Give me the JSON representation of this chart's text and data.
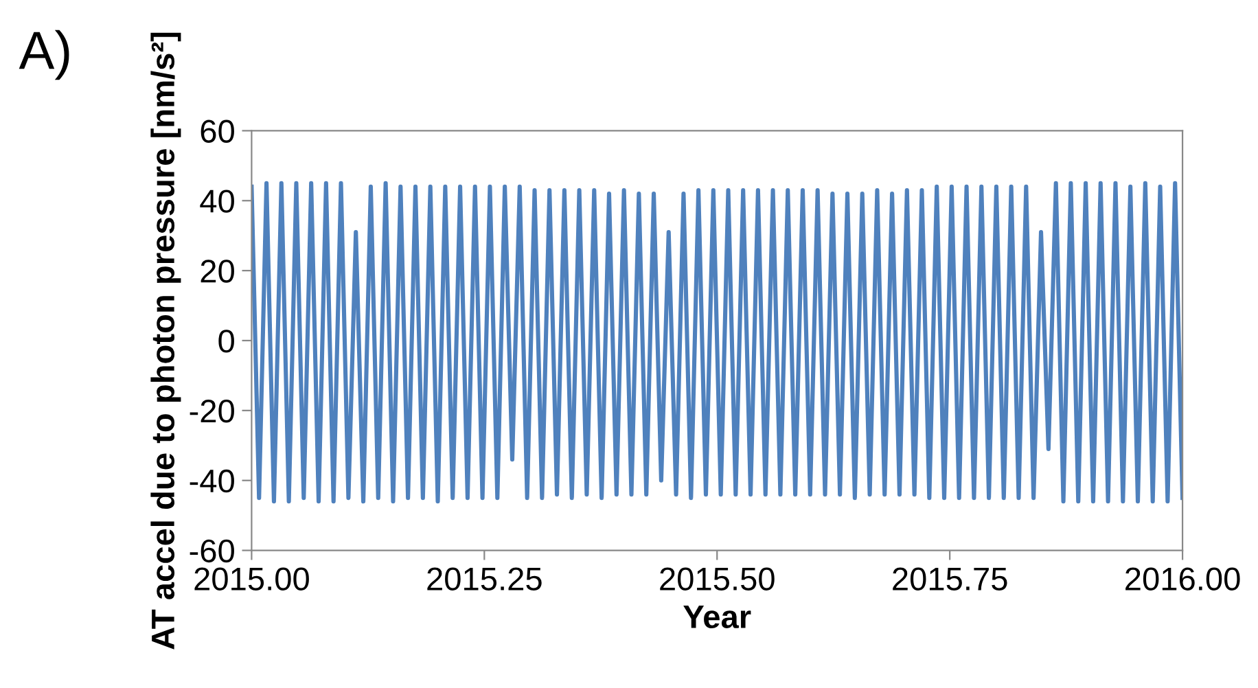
{
  "chart_data": {
    "type": "line",
    "title": "A)",
    "xlabel": "Year",
    "ylabel": "AT accel due to photon pressure [nm/s²]",
    "xlim": [
      2015,
      2016
    ],
    "ylim": [
      -60,
      60
    ],
    "xticks": [
      {
        "value": 2015,
        "label": "2015.00"
      },
      {
        "value": 2015.25,
        "label": "2015.25"
      },
      {
        "value": 2015.5,
        "label": "2015.50"
      },
      {
        "value": 2015.75,
        "label": "2015.75"
      },
      {
        "value": 2016,
        "label": "2016.00"
      }
    ],
    "yticks": [
      -60,
      -40,
      -20,
      0,
      20,
      40,
      60
    ],
    "grid": false,
    "legend": false,
    "marker": "none",
    "line_style": "solid",
    "series": [
      {
        "color": "#4f81bd",
        "x": [
          2015.0,
          2015.008,
          2015.016,
          2015.024,
          2015.032,
          2015.04,
          2015.048,
          2015.056,
          2015.064,
          2015.072,
          2015.08,
          2015.088,
          2015.096,
          2015.104,
          2015.112,
          2015.12,
          2015.128,
          2015.136,
          2015.144,
          2015.152,
          2015.16,
          2015.168,
          2015.176,
          2015.184,
          2015.192,
          2015.2,
          2015.208,
          2015.216,
          2015.224,
          2015.232,
          2015.24,
          2015.248,
          2015.256,
          2015.264,
          2015.272,
          2015.28,
          2015.288,
          2015.296,
          2015.304,
          2015.312,
          2015.32,
          2015.328,
          2015.336,
          2015.344,
          2015.352,
          2015.36,
          2015.368,
          2015.376,
          2015.384,
          2015.392,
          2015.4,
          2015.408,
          2015.416,
          2015.424,
          2015.432,
          2015.44,
          2015.448,
          2015.456,
          2015.464,
          2015.472,
          2015.48,
          2015.488,
          2015.496,
          2015.504,
          2015.512,
          2015.52,
          2015.528,
          2015.536,
          2015.544,
          2015.552,
          2015.56,
          2015.568,
          2015.576,
          2015.584,
          2015.592,
          2015.6,
          2015.608,
          2015.616,
          2015.624,
          2015.632,
          2015.64,
          2015.648,
          2015.656,
          2015.664,
          2015.672,
          2015.68,
          2015.688,
          2015.696,
          2015.704,
          2015.712,
          2015.72,
          2015.728,
          2015.736,
          2015.744,
          2015.752,
          2015.76,
          2015.768,
          2015.776,
          2015.784,
          2015.792,
          2015.8,
          2015.808,
          2015.816,
          2015.824,
          2015.832,
          2015.84,
          2015.848,
          2015.856,
          2015.864,
          2015.872,
          2015.88,
          2015.888,
          2015.896,
          2015.904,
          2015.912,
          2015.92,
          2015.928,
          2015.936,
          2015.944,
          2015.952,
          2015.96,
          2015.968,
          2015.976,
          2015.984,
          2015.992,
          2016.0
        ],
        "values": [
          44,
          -45,
          45,
          -46,
          45,
          -46,
          45,
          -45,
          45,
          -46,
          45,
          -46,
          45,
          -45,
          31,
          -46,
          44,
          -45,
          45,
          -46,
          44,
          -45,
          44,
          -45,
          44,
          -46,
          44,
          -45,
          44,
          -45,
          44,
          -45,
          44,
          -45,
          44,
          -34,
          44,
          -45,
          43,
          -45,
          43,
          -44,
          43,
          -45,
          43,
          -44,
          43,
          -45,
          42,
          -44,
          43,
          -44,
          42,
          -44,
          42,
          -40,
          31,
          -44,
          42,
          -45,
          43,
          -44,
          43,
          -44,
          43,
          -44,
          43,
          -44,
          43,
          -44,
          43,
          -44,
          43,
          -44,
          43,
          -44,
          43,
          -44,
          42,
          -44,
          42,
          -45,
          42,
          -44,
          43,
          -44,
          42,
          -44,
          43,
          -44,
          43,
          -45,
          44,
          -45,
          44,
          -45,
          44,
          -45,
          44,
          -45,
          44,
          -45,
          44,
          -45,
          44,
          -45,
          31,
          -31,
          45,
          -46,
          45,
          -46,
          45,
          -46,
          45,
          -46,
          45,
          -46,
          44,
          -46,
          45,
          -46,
          44,
          -46,
          45,
          -45
        ]
      }
    ]
  }
}
